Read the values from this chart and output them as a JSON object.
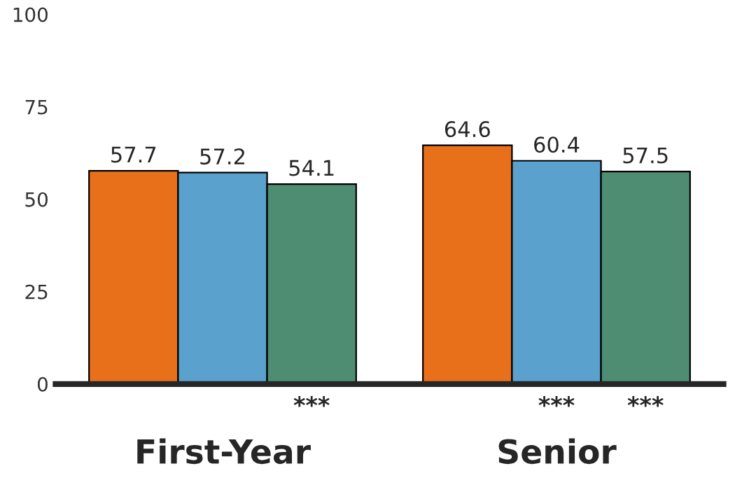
{
  "chart_data": {
    "type": "bar",
    "categories": [
      "First-Year",
      "Senior"
    ],
    "series": [
      {
        "color": "#e8701a",
        "values": [
          57.7,
          64.6
        ]
      },
      {
        "color": "#5ba1cd",
        "values": [
          57.2,
          60.4
        ]
      },
      {
        "color": "#4f8d73",
        "values": [
          54.1,
          57.5
        ]
      }
    ],
    "ylim": [
      0,
      100
    ],
    "yticks": [
      0,
      25,
      50,
      75,
      100
    ],
    "grid": false,
    "legend": false,
    "data_labels": true,
    "annotations": [
      "***",
      "***",
      "***"
    ]
  }
}
